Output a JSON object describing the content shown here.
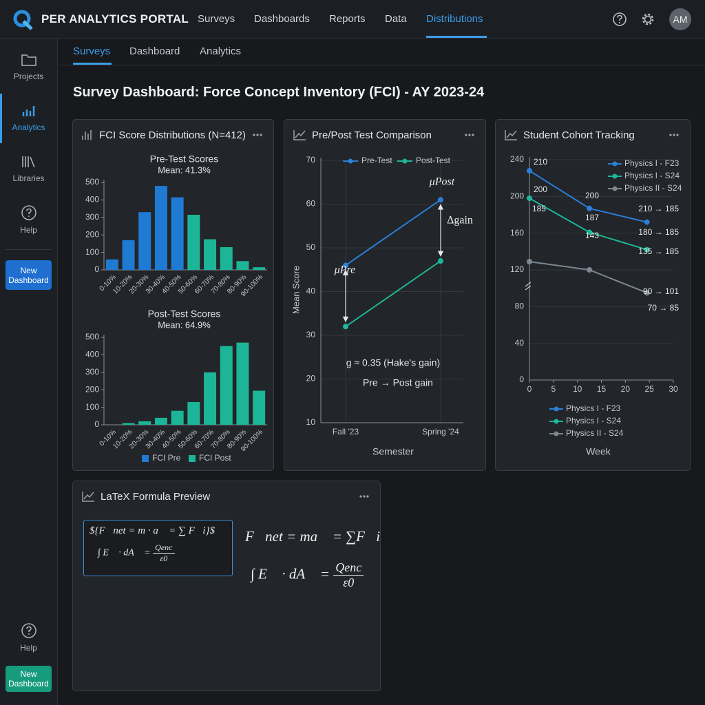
{
  "header": {
    "brand": "PER ANALYTICS PORTAL",
    "nav": [
      "Surveys",
      "Dashboards",
      "Reports",
      "Data",
      "Distributions"
    ],
    "avatar": "AM"
  },
  "sidebar": {
    "items": [
      "Projects",
      "Analytics",
      "Libraries",
      "Help"
    ],
    "new_dashboard": "New Dashboard",
    "footer_help": "Help",
    "footer_button": "New Dashboard"
  },
  "tabs": [
    "Surveys",
    "Dashboard",
    "Analytics"
  ],
  "title": "Survey Dashboard: Force Concept Inventory (FCI) - AY 2023-24",
  "panels": [
    {
      "title": "FCI Score Distributions (N=412)",
      "chart_data": [
        {
          "type": "bar",
          "title": "Pre-Test Scores",
          "subtitle": "Mean: 41.3%",
          "categories": [
            "0-10%",
            "10-20%",
            "20-30%",
            "30-40%",
            "40-50%",
            "50-60%",
            "60-70%",
            "70-80%",
            "80-90%",
            "90-100%"
          ],
          "values": [
            60,
            170,
            330,
            480,
            415,
            315,
            175,
            130,
            50,
            15
          ],
          "colors": [
            "#1f7ad4",
            "#1f7ad4",
            "#1f7ad4",
            "#1f7ad4",
            "#1f7ad4",
            "#1cb597",
            "#1cb597",
            "#1cb597",
            "#1cb597",
            "#1cb597"
          ],
          "ylim": [
            0,
            500
          ],
          "yticks": [
            0,
            100,
            200,
            300,
            400,
            500
          ]
        },
        {
          "type": "bar",
          "title": "Post-Test Scores",
          "subtitle": "Mean: 64.9%",
          "categories": [
            "0-10%",
            "10-20%",
            "20-30%",
            "30-40%",
            "40-50%",
            "50-60%",
            "60-70%",
            "70-80%",
            "80-90%",
            "90-100%"
          ],
          "values": [
            0,
            10,
            20,
            40,
            80,
            130,
            300,
            450,
            470,
            195
          ],
          "colors": [
            "#1cb597",
            "#1cb597",
            "#1cb597",
            "#1cb597",
            "#1cb597",
            "#1cb597",
            "#1cb597",
            "#1cb597",
            "#1cb597",
            "#1cb597"
          ],
          "ylim": [
            0,
            500
          ],
          "yticks": [
            0,
            100,
            200,
            300,
            400,
            500
          ]
        }
      ],
      "legend": [
        {
          "name": "FCI Pre",
          "color": "#1f7ad4"
        },
        {
          "name": "FCI Post",
          "color": "#1cb597"
        }
      ]
    },
    {
      "title": "Pre/Post Test Comparison",
      "chart_data": {
        "type": "line",
        "categories": [
          "Fall '23",
          "Spring '24"
        ],
        "series": [
          {
            "name": "Pre-Test",
            "color": "#2a7fd6",
            "values": [
              46,
              61
            ]
          },
          {
            "name": "Post-Test",
            "color": "#1db79a",
            "values": [
              32,
              47
            ]
          }
        ],
        "ylim": [
          10,
          70
        ],
        "yticks": [
          10,
          20,
          30,
          40,
          50,
          60,
          70
        ],
        "grid": true,
        "xlabel": "Semester",
        "ylabel": "Mean Score",
        "annotations": [
          "μPost",
          "μPre",
          "Δgain",
          "g ≈ 0.35 (Hake's gain)",
          "Pre → Post gain"
        ]
      }
    },
    {
      "title": "Student Cohort Tracking",
      "chart_data": {
        "type": "line",
        "x": [
          0,
          12.5,
          24.5
        ],
        "series": [
          {
            "name": "Physics I - F23",
            "color": "#2a7fd6",
            "values": [
              228,
              187,
              172
            ]
          },
          {
            "name": "Physics I - S24",
            "color": "#1db79a",
            "values": [
              198,
              161,
              142
            ]
          },
          {
            "name": "Physics II - S24",
            "color": "#7d8791",
            "values": [
              129,
              120,
              95
            ]
          }
        ],
        "xlim": [
          0,
          30
        ],
        "xticks": [
          0,
          5,
          10,
          15,
          20,
          25,
          30
        ],
        "ylim": [
          0,
          240
        ],
        "yticks": [
          0,
          40,
          80,
          120,
          160,
          200,
          240
        ],
        "grid": true,
        "xlabel": "Week",
        "annotations": [
          "210",
          "200",
          "185",
          "200",
          "187",
          "143",
          "210 → 185",
          "180 → 185",
          "135 → 185",
          "90 → 101",
          "70 → 85"
        ]
      }
    },
    {
      "title": "LaTeX Formula Preview",
      "source": {
        "line1": "${F⃗net = m · a⃗ = ∑ F⃗i}$",
        "integral": "∫ E⃗ · dA⃗ =",
        "numerator": "Qenc",
        "denominator": "ε0"
      },
      "rendered": {
        "line1": "F⃗net = ma⃗ = ∑F⃗i",
        "integral": "∫ E⃗ · dA⃗ =",
        "numerator": "Qenc",
        "denominator": "ε0"
      }
    }
  ]
}
